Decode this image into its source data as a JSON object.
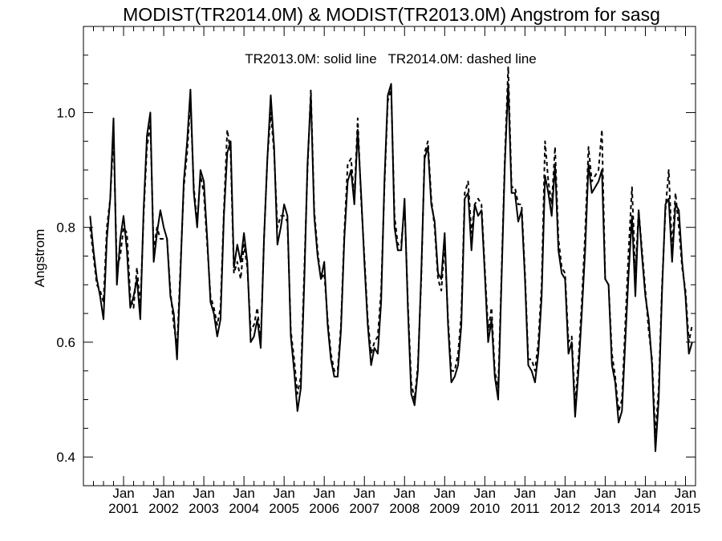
{
  "chart_data": {
    "type": "line",
    "title": "MODIST(TR2014.0M) & MODIST(TR2013.0M)  Angstrom for sasg",
    "annotation": "TR2013.0M: solid line   TR2014.0M: dashed line",
    "xlabel": "",
    "ylabel": "Angstrom",
    "ylim": [
      0.35,
      1.15
    ],
    "xlim": [
      2000.0,
      2015.25
    ],
    "y_ticks": [
      "0.4",
      "0.6",
      "0.8",
      "1.0"
    ],
    "x_ticks": [
      {
        "month": "Jan",
        "year": "2001"
      },
      {
        "month": "Jan",
        "year": "2002"
      },
      {
        "month": "Jan",
        "year": "2003"
      },
      {
        "month": "Jan",
        "year": "2004"
      },
      {
        "month": "Jan",
        "year": "2005"
      },
      {
        "month": "Jan",
        "year": "2006"
      },
      {
        "month": "Jan",
        "year": "2007"
      },
      {
        "month": "Jan",
        "year": "2008"
      },
      {
        "month": "Jan",
        "year": "2009"
      },
      {
        "month": "Jan",
        "year": "2010"
      },
      {
        "month": "Jan",
        "year": "2011"
      },
      {
        "month": "Jan",
        "year": "2012"
      },
      {
        "month": "Jan",
        "year": "2013"
      },
      {
        "month": "Jan",
        "year": "2014"
      },
      {
        "month": "Jan",
        "year": "2015"
      }
    ],
    "grid": false,
    "x_start": "2000-03",
    "series": [
      {
        "name": "TR2013.0M",
        "style": "solid",
        "color": "#000000",
        "values": [
          0.82,
          0.76,
          0.71,
          0.68,
          0.64,
          0.78,
          0.85,
          0.99,
          0.7,
          0.78,
          0.82,
          0.76,
          0.66,
          0.68,
          0.71,
          0.64,
          0.83,
          0.96,
          1.0,
          0.74,
          0.79,
          0.83,
          0.8,
          0.78,
          0.68,
          0.65,
          0.57,
          0.72,
          0.88,
          0.95,
          1.04,
          0.86,
          0.8,
          0.9,
          0.88,
          0.78,
          0.67,
          0.65,
          0.61,
          0.64,
          0.82,
          0.93,
          0.95,
          0.73,
          0.77,
          0.74,
          0.79,
          0.74,
          0.6,
          0.61,
          0.64,
          0.59,
          0.78,
          0.92,
          1.03,
          0.94,
          0.77,
          0.8,
          0.84,
          0.82,
          0.61,
          0.55,
          0.48,
          0.52,
          0.7,
          0.91,
          1.03,
          0.82,
          0.75,
          0.71,
          0.74,
          0.63,
          0.57,
          0.54,
          0.54,
          0.62,
          0.78,
          0.88,
          0.9,
          0.84,
          0.97,
          0.86,
          0.74,
          0.63,
          0.56,
          0.59,
          0.58,
          0.67,
          0.88,
          1.03,
          1.05,
          0.8,
          0.76,
          0.76,
          0.85,
          0.66,
          0.51,
          0.49,
          0.55,
          0.72,
          0.92,
          0.94,
          0.84,
          0.81,
          0.72,
          0.71,
          0.79,
          0.63,
          0.53,
          0.54,
          0.56,
          0.63,
          0.85,
          0.86,
          0.76,
          0.84,
          0.82,
          0.83,
          0.72,
          0.6,
          0.64,
          0.54,
          0.5,
          0.71,
          0.91,
          1.05,
          0.86,
          0.86,
          0.81,
          0.83,
          0.71,
          0.56,
          0.55,
          0.53,
          0.58,
          0.68,
          0.89,
          0.86,
          0.82,
          0.91,
          0.76,
          0.72,
          0.71,
          0.58,
          0.6,
          0.47,
          0.55,
          0.65,
          0.76,
          0.91,
          0.86,
          0.87,
          0.88,
          0.9,
          0.71,
          0.7,
          0.56,
          0.53,
          0.46,
          0.48,
          0.6,
          0.72,
          0.82,
          0.68,
          0.83,
          0.75,
          0.68,
          0.64,
          0.56,
          0.41,
          0.5,
          0.69,
          0.84,
          0.85,
          0.74,
          0.84,
          0.83,
          0.74,
          0.68,
          0.58,
          0.6
        ]
      },
      {
        "name": "TR2014.0M",
        "style": "dashed",
        "color": "#000000",
        "values": [
          0.8,
          0.75,
          0.7,
          0.69,
          0.67,
          0.8,
          0.85,
          0.96,
          0.73,
          0.75,
          0.8,
          0.79,
          0.68,
          0.66,
          0.73,
          0.66,
          0.82,
          0.94,
          0.98,
          0.76,
          0.8,
          0.78,
          0.78,
          0.78,
          0.69,
          0.63,
          0.59,
          0.73,
          0.87,
          0.93,
          1.02,
          0.87,
          0.81,
          0.89,
          0.86,
          0.77,
          0.68,
          0.66,
          0.63,
          0.66,
          0.83,
          0.97,
          0.93,
          0.72,
          0.74,
          0.71,
          0.77,
          0.73,
          0.62,
          0.63,
          0.66,
          0.6,
          0.78,
          0.92,
          1.0,
          0.93,
          0.8,
          0.82,
          0.82,
          0.81,
          0.62,
          0.57,
          0.51,
          0.54,
          0.72,
          0.9,
          1.04,
          0.83,
          0.76,
          0.71,
          0.72,
          0.64,
          0.58,
          0.55,
          0.55,
          0.63,
          0.79,
          0.91,
          0.92,
          0.85,
          0.99,
          0.85,
          0.75,
          0.64,
          0.58,
          0.6,
          0.61,
          0.69,
          0.87,
          1.02,
          1.04,
          0.82,
          0.77,
          0.77,
          0.84,
          0.67,
          0.53,
          0.5,
          0.56,
          0.71,
          0.93,
          0.95,
          0.85,
          0.8,
          0.71,
          0.69,
          0.77,
          0.64,
          0.55,
          0.55,
          0.58,
          0.65,
          0.86,
          0.88,
          0.79,
          0.84,
          0.85,
          0.84,
          0.73,
          0.62,
          0.66,
          0.55,
          0.52,
          0.72,
          0.92,
          1.08,
          0.87,
          0.87,
          0.84,
          0.84,
          0.72,
          0.57,
          0.57,
          0.55,
          0.6,
          0.7,
          0.95,
          0.88,
          0.84,
          0.94,
          0.78,
          0.73,
          0.72,
          0.6,
          0.61,
          0.49,
          0.57,
          0.67,
          0.79,
          0.94,
          0.88,
          0.89,
          0.9,
          0.97,
          0.71,
          0.7,
          0.58,
          0.54,
          0.48,
          0.5,
          0.63,
          0.76,
          0.87,
          0.72,
          0.83,
          0.76,
          0.69,
          0.62,
          0.57,
          0.44,
          0.52,
          0.7,
          0.83,
          0.9,
          0.76,
          0.86,
          0.8,
          0.73,
          0.69,
          0.6,
          0.63
        ]
      }
    ]
  }
}
